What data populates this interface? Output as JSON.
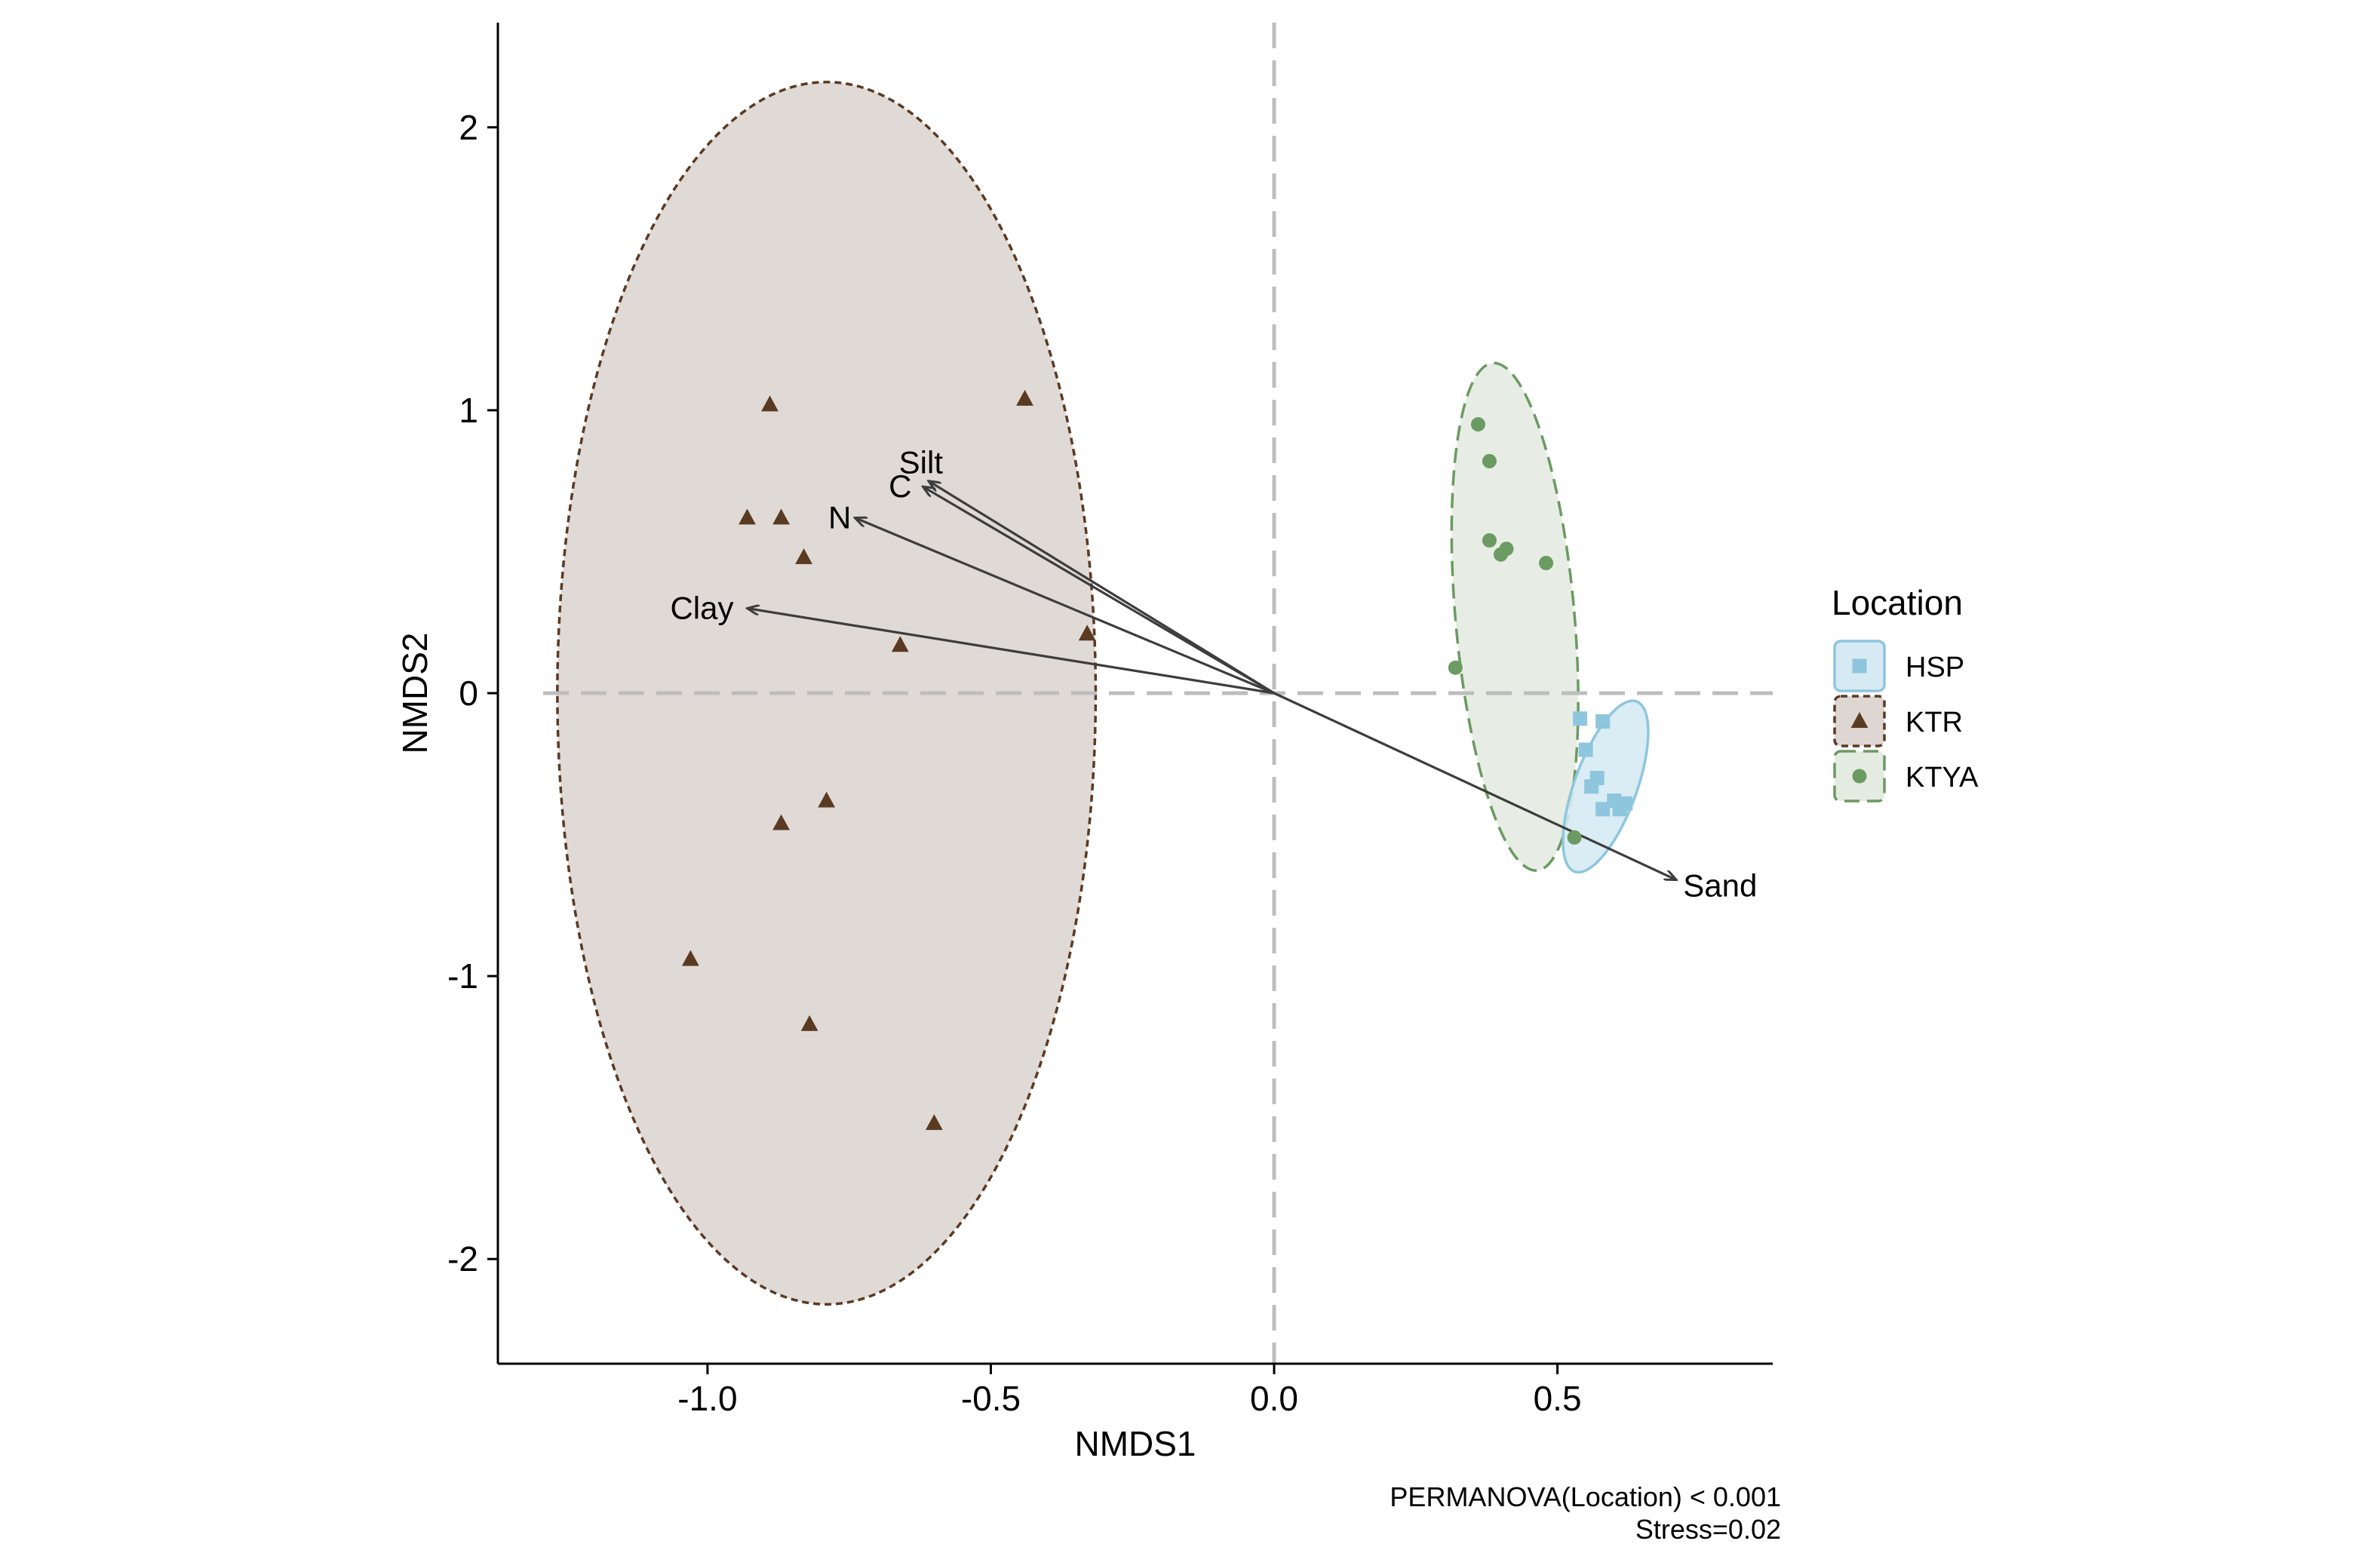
{
  "chart_data": {
    "type": "scatter",
    "title": "",
    "xlabel": "NMDS1",
    "ylabel": "NMDS2",
    "xlim": [
      -1.37,
      0.88
    ],
    "ylim": [
      -2.37,
      2.37
    ],
    "x_ticks": [
      {
        "value": -1.0,
        "label": "-1.0"
      },
      {
        "value": -0.5,
        "label": "-0.5"
      },
      {
        "value": 0.0,
        "label": "0.0"
      },
      {
        "value": 0.5,
        "label": "0.5"
      }
    ],
    "y_ticks": [
      {
        "value": -2,
        "label": "-2"
      },
      {
        "value": -1,
        "label": "-1"
      },
      {
        "value": 0,
        "label": "0"
      },
      {
        "value": 1,
        "label": "1"
      },
      {
        "value": 2,
        "label": "2"
      }
    ],
    "grid": false,
    "reference_lines": {
      "x": 0,
      "y": 0,
      "color": "#bdbdbd",
      "style": "dashed"
    },
    "legend": {
      "title": "Location",
      "placement": "right"
    },
    "series": [
      {
        "name": "HSP",
        "color": "#8ec6de",
        "fill": "#d6eaf3",
        "marker": "square",
        "border_style": "solid",
        "points": [
          [
            0.54,
            -0.09
          ],
          [
            0.58,
            -0.1
          ],
          [
            0.55,
            -0.2
          ],
          [
            0.57,
            -0.3
          ],
          [
            0.56,
            -0.33
          ],
          [
            0.6,
            -0.38
          ],
          [
            0.62,
            -0.39
          ],
          [
            0.58,
            -0.41
          ],
          [
            0.61,
            -0.41
          ]
        ],
        "ellipse": {
          "cx": 0.585,
          "cy": -0.33,
          "rx": 0.055,
          "ry": 0.32,
          "angle_deg": 20
        }
      },
      {
        "name": "KTR",
        "color": "#5b3a22",
        "fill": "#ddd6d2",
        "marker": "triangle",
        "border_style": "dotted",
        "points": [
          [
            -0.89,
            1.02
          ],
          [
            -0.44,
            1.04
          ],
          [
            -0.93,
            0.62
          ],
          [
            -0.87,
            0.62
          ],
          [
            -0.83,
            0.48
          ],
          [
            -0.33,
            0.21
          ],
          [
            -0.66,
            0.17
          ],
          [
            -0.79,
            -0.38
          ],
          [
            -0.87,
            -0.46
          ],
          [
            -1.03,
            -0.94
          ],
          [
            -0.82,
            -1.17
          ],
          [
            -0.6,
            -1.52
          ]
        ],
        "ellipse": {
          "cx": -0.79,
          "cy": 0.0,
          "rx": 0.475,
          "ry": 2.16,
          "angle_deg": 0
        }
      },
      {
        "name": "KTYA",
        "color": "#6b9a62",
        "fill": "#e4ebe1",
        "marker": "circle",
        "border_style": "dashed",
        "points": [
          [
            0.36,
            0.95
          ],
          [
            0.38,
            0.82
          ],
          [
            0.38,
            0.54
          ],
          [
            0.41,
            0.51
          ],
          [
            0.4,
            0.49
          ],
          [
            0.48,
            0.46
          ],
          [
            0.32,
            0.09
          ],
          [
            0.53,
            -0.51
          ]
        ],
        "ellipse": {
          "cx": 0.425,
          "cy": 0.27,
          "rx": 0.105,
          "ry": 0.9,
          "angle_deg": -5
        }
      }
    ],
    "vectors": [
      {
        "name": "Silt",
        "x": -0.61,
        "y": 0.75
      },
      {
        "name": "C",
        "x": -0.62,
        "y": 0.73
      },
      {
        "name": "N",
        "x": -0.74,
        "y": 0.62
      },
      {
        "name": "Clay",
        "x": -0.93,
        "y": 0.3
      },
      {
        "name": "Sand",
        "x": 0.71,
        "y": -0.66
      }
    ],
    "annotations": [
      "PERMANOVA(Location) < 0.001",
      "Stress=0.02"
    ]
  }
}
